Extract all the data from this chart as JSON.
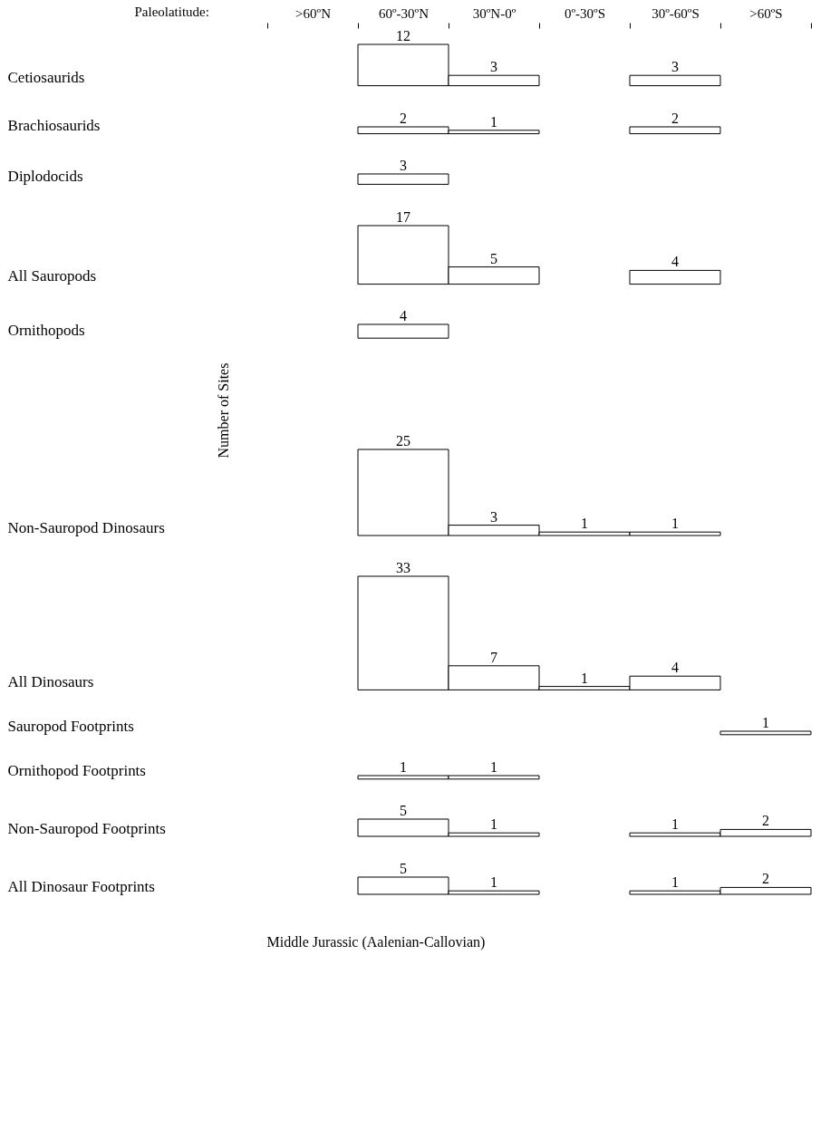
{
  "chart_data": [
    {
      "type": "bar",
      "ylabel": "Cetiosaurids",
      "xlabel": "Paleolatitude:",
      "categories": [
        ">60ºN",
        "60º-30ºN",
        "30ºN-0º",
        "0º-30ºS",
        "30º-60ºS",
        ">60ºS"
      ],
      "values": [
        null,
        12,
        3,
        null,
        3,
        null
      ],
      "color": "#ffffff",
      "data_labels": true,
      "tick_labels": "x"
    },
    {
      "type": "bar",
      "ylabel": "Brachiosaurids",
      "categories": [
        null,
        null,
        null,
        null,
        null,
        null
      ],
      "values": [
        null,
        2,
        1,
        null,
        2,
        null
      ],
      "color": "#ffffff",
      "data_labels": true,
      "tick_labels": false
    },
    {
      "type": "bar",
      "ylabel": "Diplodocids",
      "categories": [
        null,
        null,
        null,
        null,
        null,
        null
      ],
      "values": [
        null,
        3,
        null,
        null,
        null,
        null
      ],
      "color": "#ffffff",
      "data_labels": true,
      "tick_labels": false
    },
    {
      "type": "bar",
      "ylabel": "All Sauropods",
      "categories": [
        null,
        null,
        null,
        null,
        null,
        null
      ],
      "values": [
        null,
        17,
        5,
        null,
        4,
        null
      ],
      "color": "#ffffff",
      "data_labels": true,
      "tick_labels": false
    },
    {
      "type": "bar",
      "ylabel": "Ornithopods",
      "categories": [
        null,
        null,
        null,
        null,
        null,
        null
      ],
      "values": [
        null,
        4,
        null,
        null,
        null,
        null
      ],
      "color": "#ffffff",
      "data_labels": true,
      "tick_labels": false
    },
    {
      "type": "bar",
      "ylabel": "Non-Sauropod Dinosaurs",
      "annotations": [
        "Number of Sites"
      ],
      "categories": [
        null,
        null,
        null,
        null,
        null,
        null
      ],
      "values": [
        null,
        25,
        3,
        1,
        1,
        null
      ],
      "color": "#ffffff",
      "data_labels": true,
      "tick_labels": false
    },
    {
      "type": "bar",
      "ylabel": "All Dinosaurs",
      "categories": [
        null,
        null,
        null,
        null,
        null,
        null
      ],
      "values": [
        null,
        33,
        7,
        1,
        4,
        null
      ],
      "color": "#ffffff",
      "data_labels": true,
      "tick_labels": false
    },
    {
      "type": "bar",
      "ylabel": "Sauropod Footprints",
      "categories": [
        null,
        null,
        null,
        null,
        null,
        null
      ],
      "values": [
        null,
        null,
        null,
        null,
        null,
        1
      ],
      "color": "#ffffff",
      "data_labels": true,
      "tick_labels": false
    },
    {
      "type": "bar",
      "ylabel": "Ornithopod Footprints",
      "categories": [
        null,
        null,
        null,
        null,
        null,
        null
      ],
      "values": [
        null,
        1,
        1,
        null,
        null,
        null
      ],
      "color": "#ffffff",
      "data_labels": true,
      "tick_labels": false
    },
    {
      "type": "bar",
      "ylabel": "Non-Sauropod Footprints",
      "categories": [
        null,
        null,
        null,
        null,
        null,
        null
      ],
      "values": [
        null,
        5,
        1,
        null,
        1,
        2
      ],
      "color": "#ffffff",
      "data_labels": true,
      "tick_labels": false
    },
    {
      "type": "bar",
      "ylabel": "All Dinosaur Footprints",
      "annotations": [
        "Middle Jurassic (Aalenian-Callovian)"
      ],
      "categories": [
        null,
        null,
        null,
        null,
        null,
        null
      ],
      "values": [
        null,
        5,
        1,
        null,
        1,
        2
      ],
      "color": "#ffffff",
      "data_labels": true,
      "tick_labels": false
    }
  ]
}
